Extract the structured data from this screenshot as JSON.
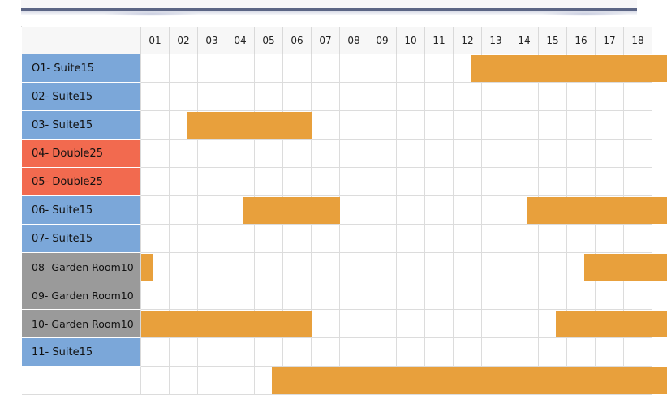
{
  "header": {
    "days": [
      "01",
      "02",
      "03",
      "04",
      "05",
      "06",
      "07",
      "08",
      "09",
      "10",
      "11",
      "12",
      "13",
      "14",
      "15",
      "16",
      "17",
      "18"
    ]
  },
  "rooms": [
    {
      "label": "O1- Suite15",
      "type": "suite"
    },
    {
      "label": "02- Suite15",
      "type": "suite"
    },
    {
      "label": "03- Suite15",
      "type": "suite"
    },
    {
      "label": "04- Double25",
      "type": "double"
    },
    {
      "label": "05- Double25",
      "type": "double"
    },
    {
      "label": "06- Suite15",
      "type": "suite"
    },
    {
      "label": "07- Suite15",
      "type": "suite"
    },
    {
      "label": "08- Garden Room10",
      "type": "garden"
    },
    {
      "label": "09- Garden Room10",
      "type": "garden"
    },
    {
      "label": "10- Garden Room10",
      "type": "garden"
    },
    {
      "label": "11- Suite15",
      "type": "suite"
    }
  ],
  "bookings": [
    {
      "row": 0,
      "start": 11.6,
      "end": 18.5
    },
    {
      "row": 2,
      "start": 1.6,
      "end": 6.0
    },
    {
      "row": 5,
      "start": 3.6,
      "end": 7.0
    },
    {
      "row": 5,
      "start": 13.6,
      "end": 18.5
    },
    {
      "row": 7,
      "start": 0.0,
      "end": 0.4
    },
    {
      "row": 7,
      "start": 15.6,
      "end": 18.5
    },
    {
      "row": 9,
      "start": 0.0,
      "end": 6.0
    },
    {
      "row": 9,
      "start": 14.6,
      "end": 18.5
    },
    {
      "row": 11,
      "start": 4.6,
      "end": 18.5
    }
  ],
  "colors": {
    "suite": "#7ba7d9",
    "double": "#f26a4f",
    "garden": "#9a9a9a",
    "booking": "#e8a03c"
  }
}
